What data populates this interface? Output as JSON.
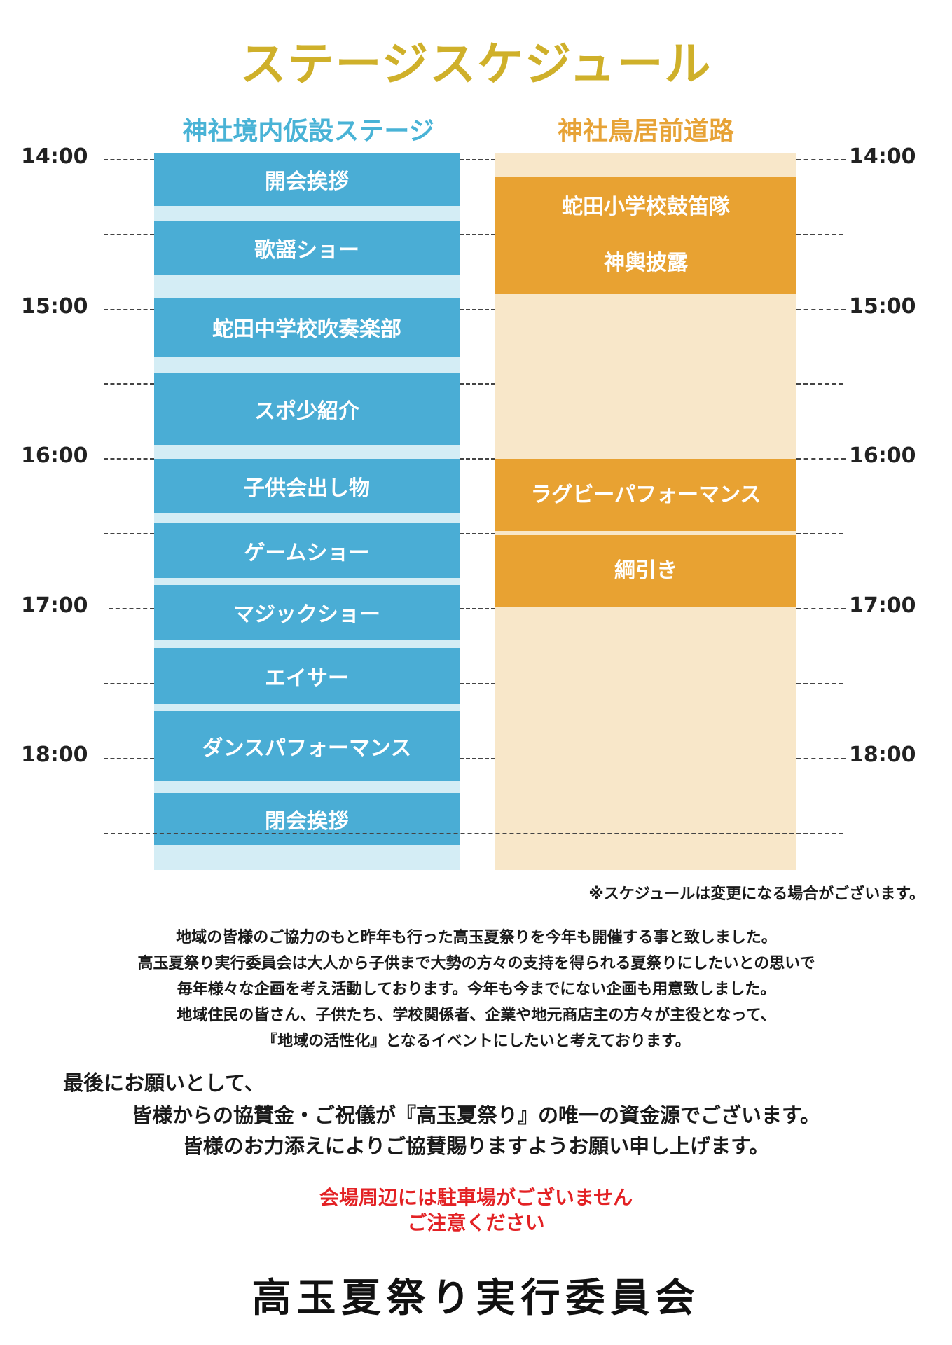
{
  "title": "ステージスケジュール",
  "columns": {
    "left_title": "神社境内仮設ステージ",
    "right_title": "神社鳥居前道路"
  },
  "times": [
    "14:00",
    "15:00",
    "16:00",
    "17:00",
    "18:00"
  ],
  "left_events": [
    "開会挨拶",
    "歌謡ショー",
    "蛇田中学校吹奏楽部",
    "スポ少紹介",
    "子供会出し物",
    "ゲームショー",
    "マジックショー",
    "エイサー",
    "ダンスパフォーマンス",
    "閉会挨拶"
  ],
  "right_events": [
    {
      "lines": [
        "蛇田小学校鼓笛隊",
        "神輿披露"
      ]
    },
    {
      "lines": [
        "ラグビーパフォーマンス"
      ]
    },
    {
      "lines": [
        "綱引き"
      ]
    }
  ],
  "note": "※スケジュールは変更になる場合がございます。",
  "paragraph": [
    "地域の皆様のご協力のもと昨年も行った高玉夏祭りを今年も開催する事と致しました。",
    "高玉夏祭り実行委員会は大人から子供まで大勢の方々の支持を得られる夏祭りにしたいとの思いで",
    "毎年様々な企画を考え活動しております。今年も今までにない企画も用意致しました。",
    "地域住民の皆さん、子供たち、学校関係者、企業や地元商店主の方々が主役となって、",
    "『地域の活性化』となるイベントにしたいと考えております。"
  ],
  "appeal": [
    "最後にお願いとして、",
    "皆様からの協賛金・ご祝儀が『高玉夏祭り』の唯一の資金源でございます。",
    "皆様のお力添えによりご協賛賜りますようお願い申し上げます。"
  ],
  "warning": [
    "会場周辺には駐車場がございません",
    "ご注意ください"
  ],
  "organizer": "高玉夏祭り実行委員会",
  "colors": {
    "title": "#cfb02a",
    "blue": "#4aadd5",
    "orange": "#e8a232",
    "red": "#e32124"
  }
}
